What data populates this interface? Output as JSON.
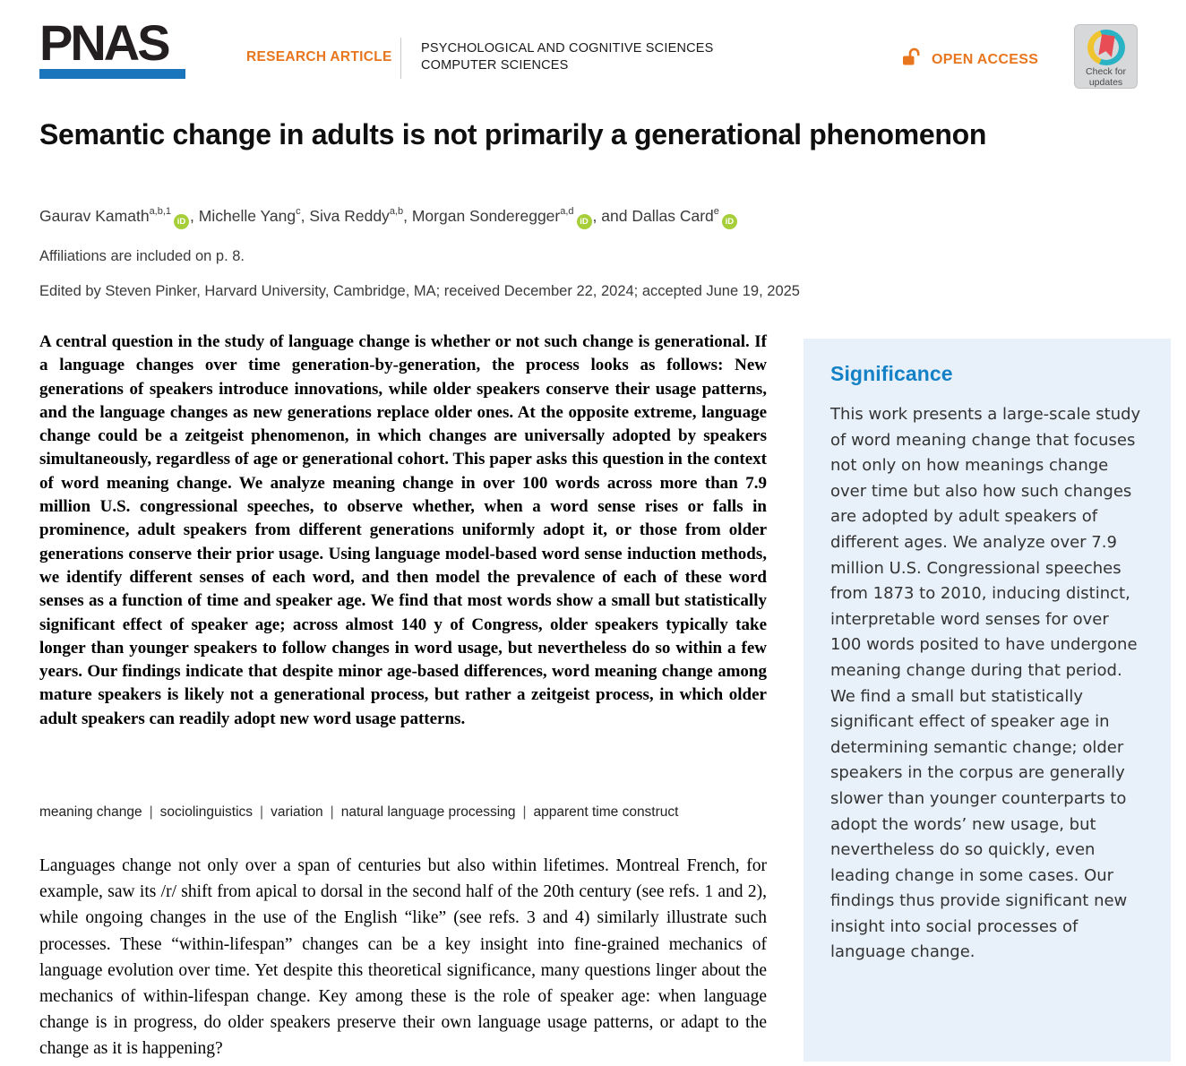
{
  "header": {
    "logo_text": "PNAS",
    "article_type": "RESEARCH ARTICLE",
    "category_line1": "PSYCHOLOGICAL AND COGNITIVE SCIENCES",
    "category_line2": "COMPUTER SCIENCES",
    "open_access_label": "OPEN ACCESS",
    "check_updates_line1": "Check for",
    "check_updates_line2": "updates"
  },
  "article": {
    "title": "Semantic change in adults is not primarily a generational phenomenon",
    "authors": [
      {
        "name": "Gaurav Kamath",
        "sup": "a,b,1",
        "orcid": true,
        "sep": ", "
      },
      {
        "name": "Michelle Yang",
        "sup": "c",
        "orcid": false,
        "sep": ", "
      },
      {
        "name": "Siva Reddy",
        "sup": "a,b",
        "orcid": false,
        "sep": ", "
      },
      {
        "name": "Morgan Sonderegger",
        "sup": "a,d",
        "orcid": true,
        "sep": ", and "
      },
      {
        "name": "Dallas Card",
        "sup": "e",
        "orcid": true,
        "sep": ""
      }
    ],
    "affiliations_note": "Affiliations are included on p. 8.",
    "edited_by": "Edited by Steven Pinker, Harvard University, Cambridge, MA; received December 22, 2024; accepted June 19, 2025",
    "abstract": "A central question in the study of language change is whether or not such change is generational. If a language changes over time generation-by-generation, the process looks as follows: New generations of speakers introduce innovations, while older speakers conserve their usage patterns, and the language changes as new generations replace older ones. At the opposite extreme, language change could be a zeitgeist phenomenon, in which changes are universally adopted by speakers simultaneously, regardless of age or generational cohort. This paper asks this question in the context of word meaning change. We analyze meaning change in over 100 words across more than 7.9 million U.S. congressional speeches, to observe whether, when a word sense rises or falls in prominence, adult speakers from different generations uniformly adopt it, or those from older generations conserve their prior usage. Using language model-based word sense induction methods, we identify different senses of each word, and then model the prevalence of each of these word senses as a function of time and speaker age. We find that most words show a small but statistically significant effect of speaker age; across almost 140 y of Congress, older speakers typically take longer than younger speakers to follow changes in word usage, but nevertheless do so within a few years. Our findings indicate that despite minor age-based differences, word meaning change among mature speakers is likely not a generational process, but rather a zeitgeist process, in which older adult speakers can readily adopt new word usage patterns.",
    "keywords": [
      "meaning change",
      "sociolinguistics",
      "variation",
      "natural language processing",
      "apparent time construct"
    ],
    "body_paragraph": "Languages change not only over a span of centuries but also within lifetimes. Montreal French, for example, saw its /r/ shift from apical to dorsal in the second half of the 20th century (see refs. 1 and 2), while ongoing changes in the use of the English “like” (see refs. 3 and 4) similarly illustrate such processes. These “within-lifespan” changes can be a key insight into fine-grained mechanics of language evolution over time. Yet despite this theoretical significance, many questions linger about the mechanics of within-lifespan change. Key among these is the role of speaker age: when language change is in progress, do older speakers preserve their own language usage patterns, or adapt to the change as it is happening?"
  },
  "significance": {
    "heading": "Significance",
    "text": "This work presents a large-scale study of word meaning change that focuses not only on how meanings change over time but also how such changes are adopted by adult speakers of different ages. We analyze over 7.9 million U.S. Congressional speeches from 1873 to 2010, inducing distinct, interpretable word senses for over 100 words posited to have undergone meaning change during that period. We find a small but statistically significant effect of speaker age in determining semantic change; older speakers in the corpus are generally slower than younger counterparts to adopt the words’ new usage, but nevertheless do so quickly, even leading change in some cases. Our findings thus provide significant new insight into social processes of language change."
  },
  "colors": {
    "pnas_blue": "#1b75bc",
    "accent_orange": "#e8761f",
    "significance_blue": "#1481c6",
    "sidebar_bg": "#e8f1f9",
    "orcid_green": "#a6ce39",
    "crossmark_teal": "#2ab3c4",
    "crossmark_yellow": "#f0c42f",
    "crossmark_red": "#e84c55"
  }
}
